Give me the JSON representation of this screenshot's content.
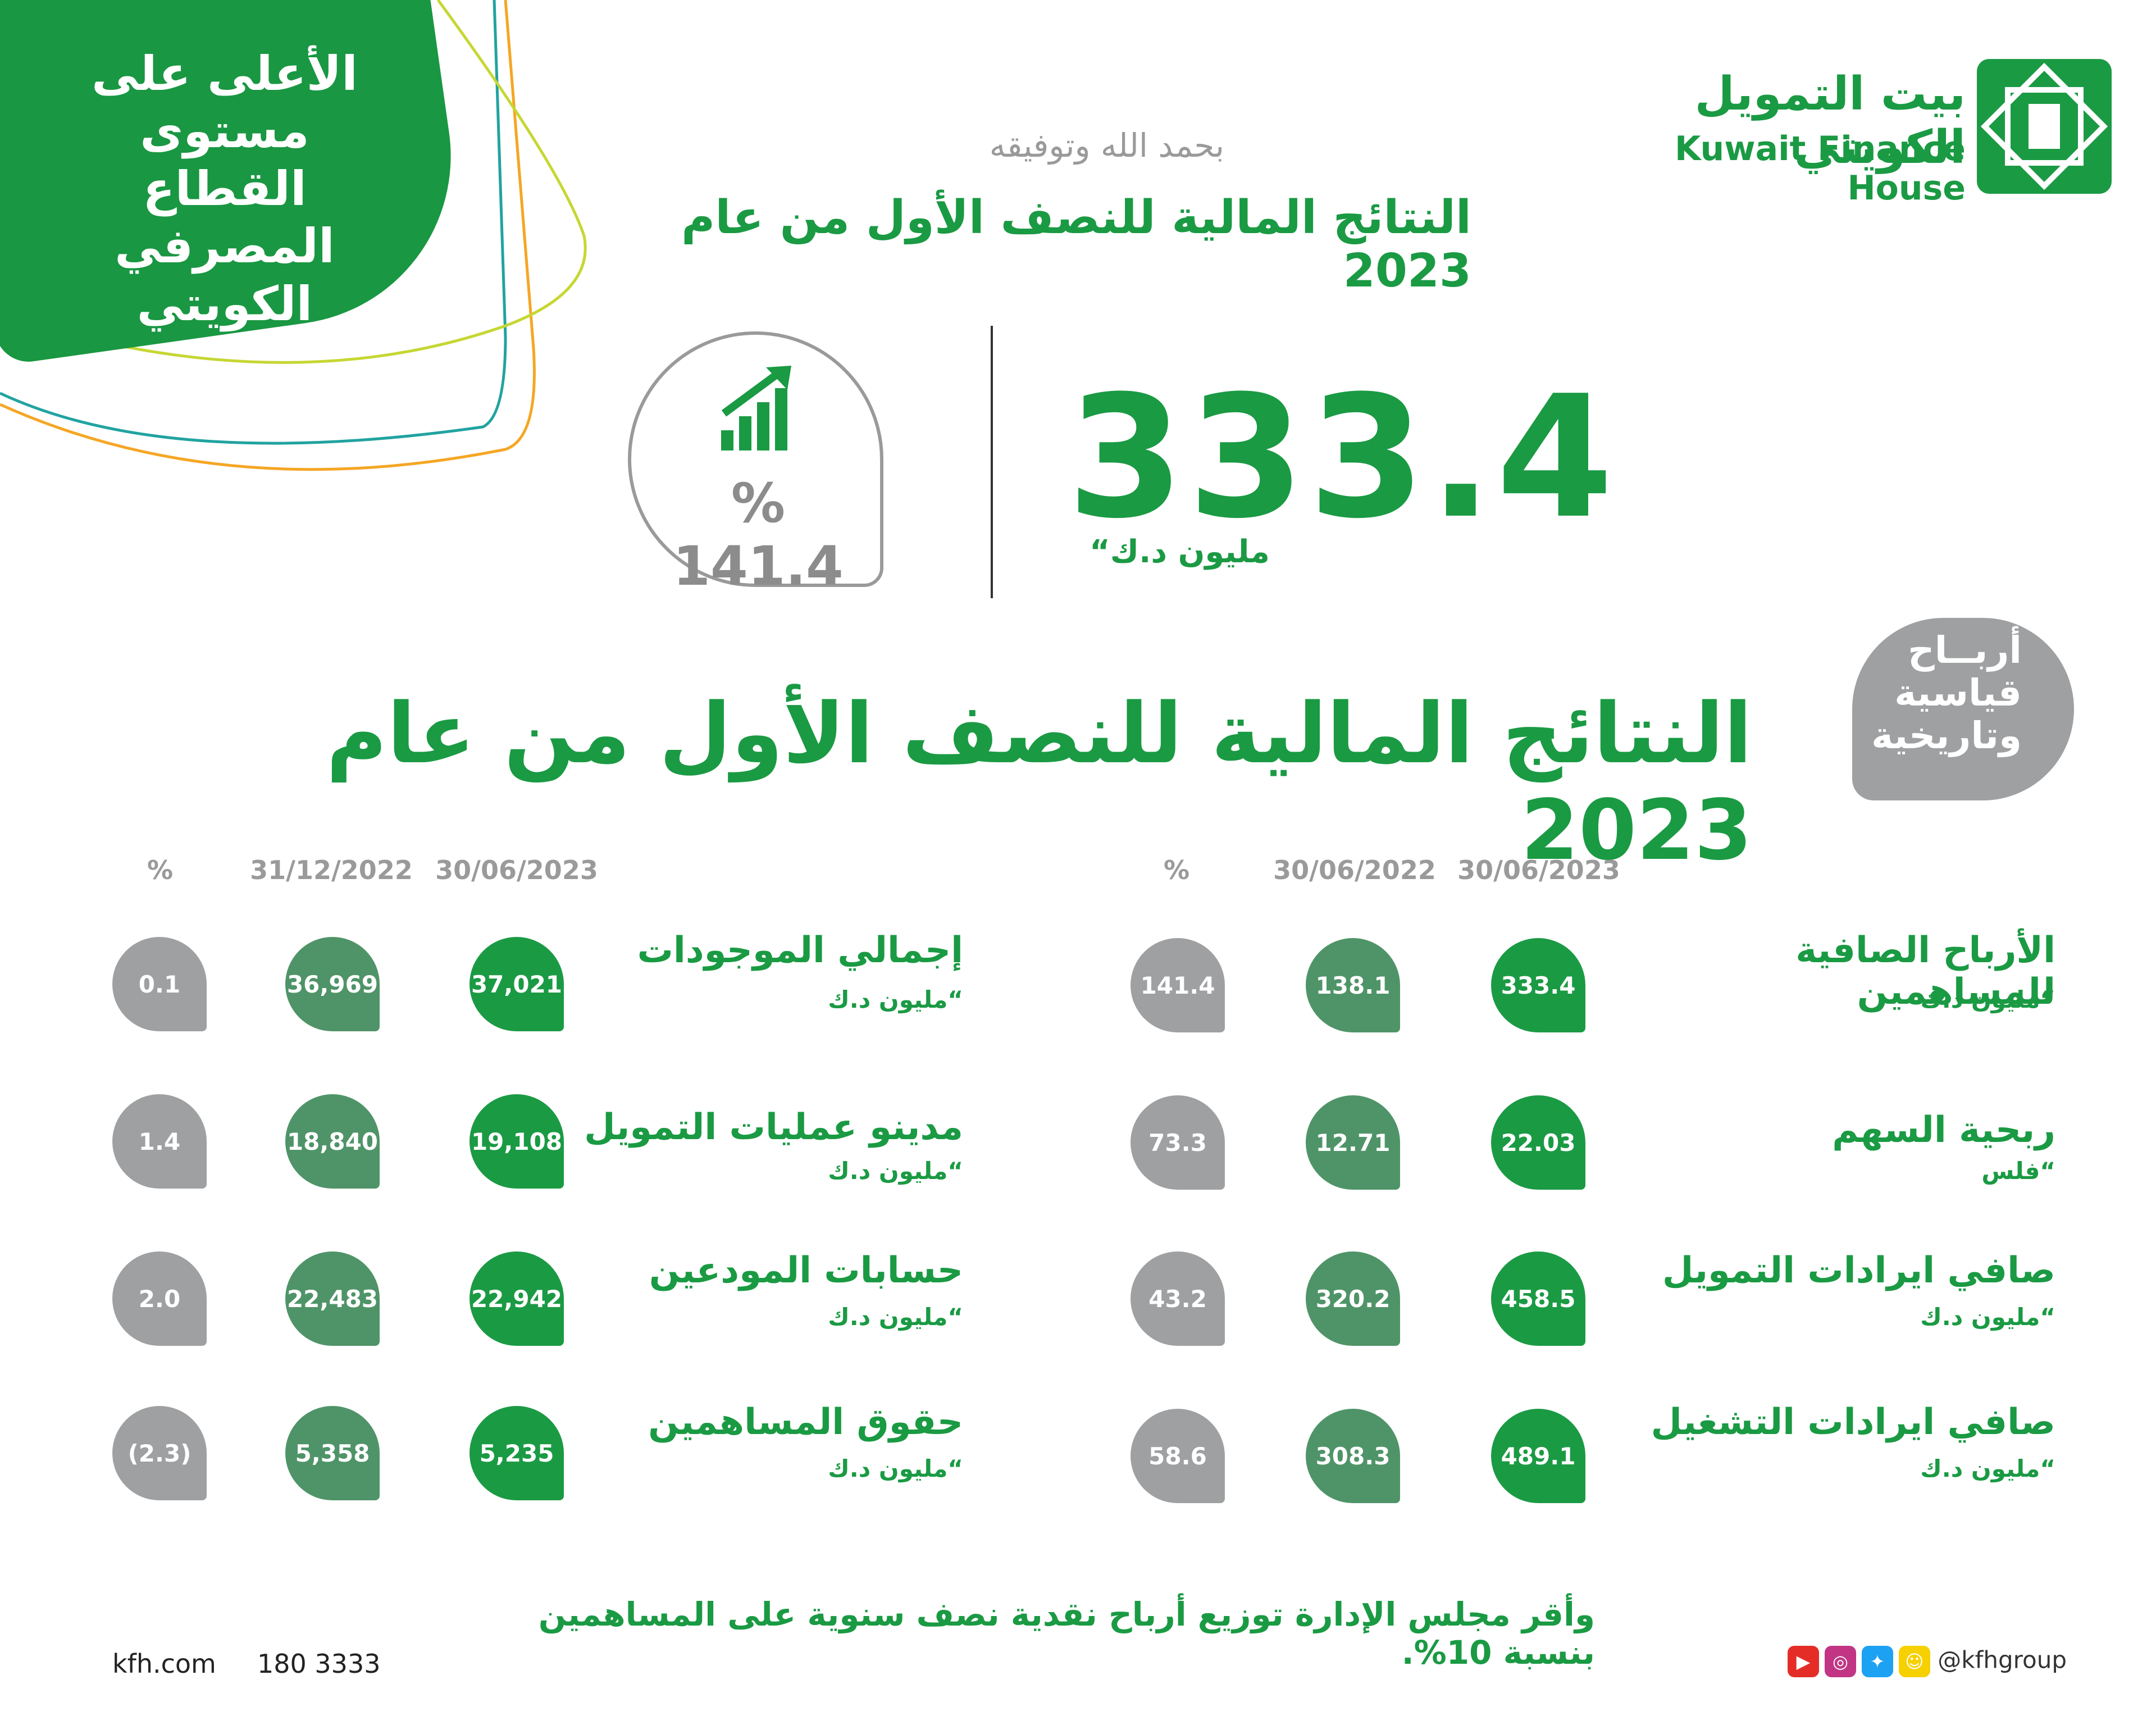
{
  "corner_badge": [
    "الأعلى على",
    "مستوى القطاع",
    "المصرفي",
    "الكويتي"
  ],
  "logo": {
    "arabic": "بيت التمويل الكويتي",
    "english": "Kuwait Finance House"
  },
  "blessing": "بحمد الله وتوفيقه",
  "subtitle": "النتائج المالية للنصف الأول من عام 2023",
  "headline": {
    "value": "333.4",
    "unit": "مليون د.ك“",
    "growth": "% 141.4"
  },
  "record_badge": [
    "أربــاح",
    "قياسية",
    "وتاريخية"
  ],
  "main_title": "النتائج المالية للنصف الأول من عام 2023",
  "colors": {
    "primary_green": "#1b9a44",
    "dark_green": "#4f9468",
    "grey": "#9fa0a2"
  },
  "right_table": {
    "headers": [
      "30/06/2023",
      "30/06/2022",
      "%"
    ],
    "rows": [
      {
        "name": "الأرباح الصافية للمساهمين",
        "unit": "“مليون د.ك",
        "cur": "333.4",
        "prev": "138.1",
        "pct": "141.4"
      },
      {
        "name": "ربحية السهم",
        "unit": "“فلس",
        "cur": "22.03",
        "prev": "12.71",
        "pct": "73.3"
      },
      {
        "name": "صافي ايرادات التمويل",
        "unit": "“مليون د.ك",
        "cur": "458.5",
        "prev": "320.2",
        "pct": "43.2"
      },
      {
        "name": "صافي ايرادات التشغيل",
        "unit": "“مليون د.ك",
        "cur": "489.1",
        "prev": "308.3",
        "pct": "58.6"
      }
    ]
  },
  "left_table": {
    "headers": [
      "30/06/2023",
      "31/12/2022",
      "%"
    ],
    "rows": [
      {
        "name": "إجمالي الموجودات",
        "unit": "“مليون د.ك",
        "cur": "37,021",
        "prev": "36,969",
        "pct": "0.1"
      },
      {
        "name": "مدينو عمليات التمويل",
        "unit": "“مليون د.ك",
        "cur": "19,108",
        "prev": "18,840",
        "pct": "1.4"
      },
      {
        "name": "حسابات المودعين",
        "unit": "“مليون د.ك",
        "cur": "22,942",
        "prev": "22,483",
        "pct": "2.0"
      },
      {
        "name": "حقوق المساهمين",
        "unit": "“مليون د.ك",
        "cur": "5,235",
        "prev": "5,358",
        "pct": "(2.3)"
      }
    ]
  },
  "footer": {
    "note": "وأقر مجلس الإدارة توزيع أرباح نقدية نصف سنوية على المساهمين بنسبة 10%.",
    "website": "kfh.com",
    "phone": "180 3333",
    "social_handle": "@kfhgroup",
    "social_icons": [
      "youtube-icon",
      "instagram-icon",
      "twitter-icon",
      "snapchat-icon"
    ]
  }
}
